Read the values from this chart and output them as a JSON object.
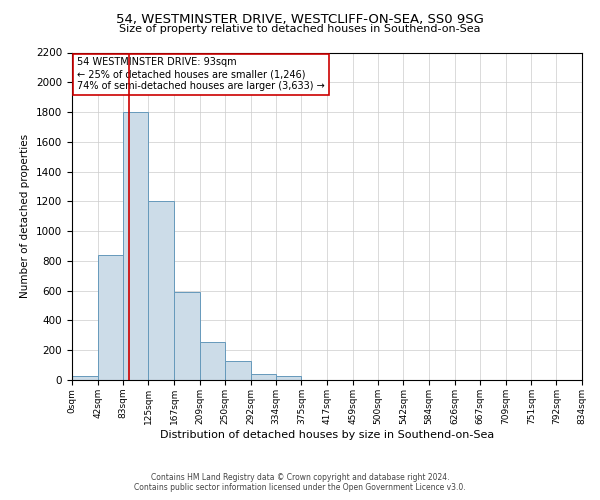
{
  "title_line1": "54, WESTMINSTER DRIVE, WESTCLIFF-ON-SEA, SS0 9SG",
  "title_line2": "Size of property relative to detached houses in Southend-on-Sea",
  "xlabel": "Distribution of detached houses by size in Southend-on-Sea",
  "ylabel": "Number of detached properties",
  "bin_edges": [
    0,
    42,
    83,
    125,
    167,
    209,
    250,
    292,
    334,
    375,
    417,
    459,
    500,
    542,
    584,
    626,
    667,
    709,
    751,
    792,
    834
  ],
  "bin_labels": [
    "0sqm",
    "42sqm",
    "83sqm",
    "125sqm",
    "167sqm",
    "209sqm",
    "250sqm",
    "292sqm",
    "334sqm",
    "375sqm",
    "417sqm",
    "459sqm",
    "500sqm",
    "542sqm",
    "584sqm",
    "626sqm",
    "667sqm",
    "709sqm",
    "751sqm",
    "792sqm",
    "834sqm"
  ],
  "bar_heights": [
    25,
    840,
    1800,
    1200,
    590,
    255,
    125,
    40,
    25,
    0,
    0,
    0,
    0,
    0,
    0,
    0,
    0,
    0,
    0,
    0
  ],
  "bar_color": "#ccdce8",
  "bar_edgecolor": "#6699bb",
  "grid_color": "#cccccc",
  "property_line_x": 93,
  "property_line_color": "#cc0000",
  "ylim": [
    0,
    2200
  ],
  "yticks": [
    0,
    200,
    400,
    600,
    800,
    1000,
    1200,
    1400,
    1600,
    1800,
    2000,
    2200
  ],
  "annotation_title": "54 WESTMINSTER DRIVE: 93sqm",
  "annotation_line1": "← 25% of detached houses are smaller (1,246)",
  "annotation_line2": "74% of semi-detached houses are larger (3,633) →",
  "annotation_box_edgecolor": "#cc0000",
  "footer_line1": "Contains HM Land Registry data © Crown copyright and database right 2024.",
  "footer_line2": "Contains public sector information licensed under the Open Government Licence v3.0.",
  "background_color": "#ffffff",
  "fig_width": 6.0,
  "fig_height": 5.0
}
